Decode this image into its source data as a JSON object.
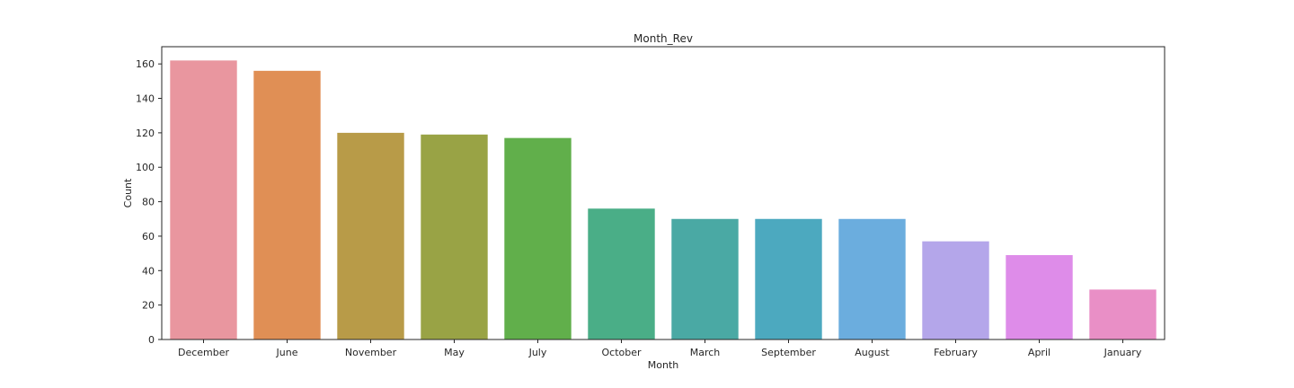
{
  "chart_data": {
    "type": "bar",
    "title": "Month_Rev",
    "xlabel": "Month",
    "ylabel": "Count",
    "categories": [
      "December",
      "June",
      "November",
      "May",
      "July",
      "October",
      "March",
      "September",
      "August",
      "February",
      "April",
      "January"
    ],
    "values": [
      162,
      156,
      120,
      119,
      117,
      76,
      70,
      70,
      70,
      57,
      49,
      29
    ],
    "colors": [
      "#e9969f",
      "#e08f55",
      "#b89b48",
      "#99a345",
      "#61af4b",
      "#4aae87",
      "#4aa9a4",
      "#4ca9bf",
      "#6badde",
      "#b4a6ea",
      "#de8ce9",
      "#e98fc6"
    ],
    "yticks": [
      0,
      20,
      40,
      60,
      80,
      100,
      120,
      140,
      160
    ],
    "ylim": [
      0,
      170
    ],
    "grid": false,
    "legend": null
  }
}
